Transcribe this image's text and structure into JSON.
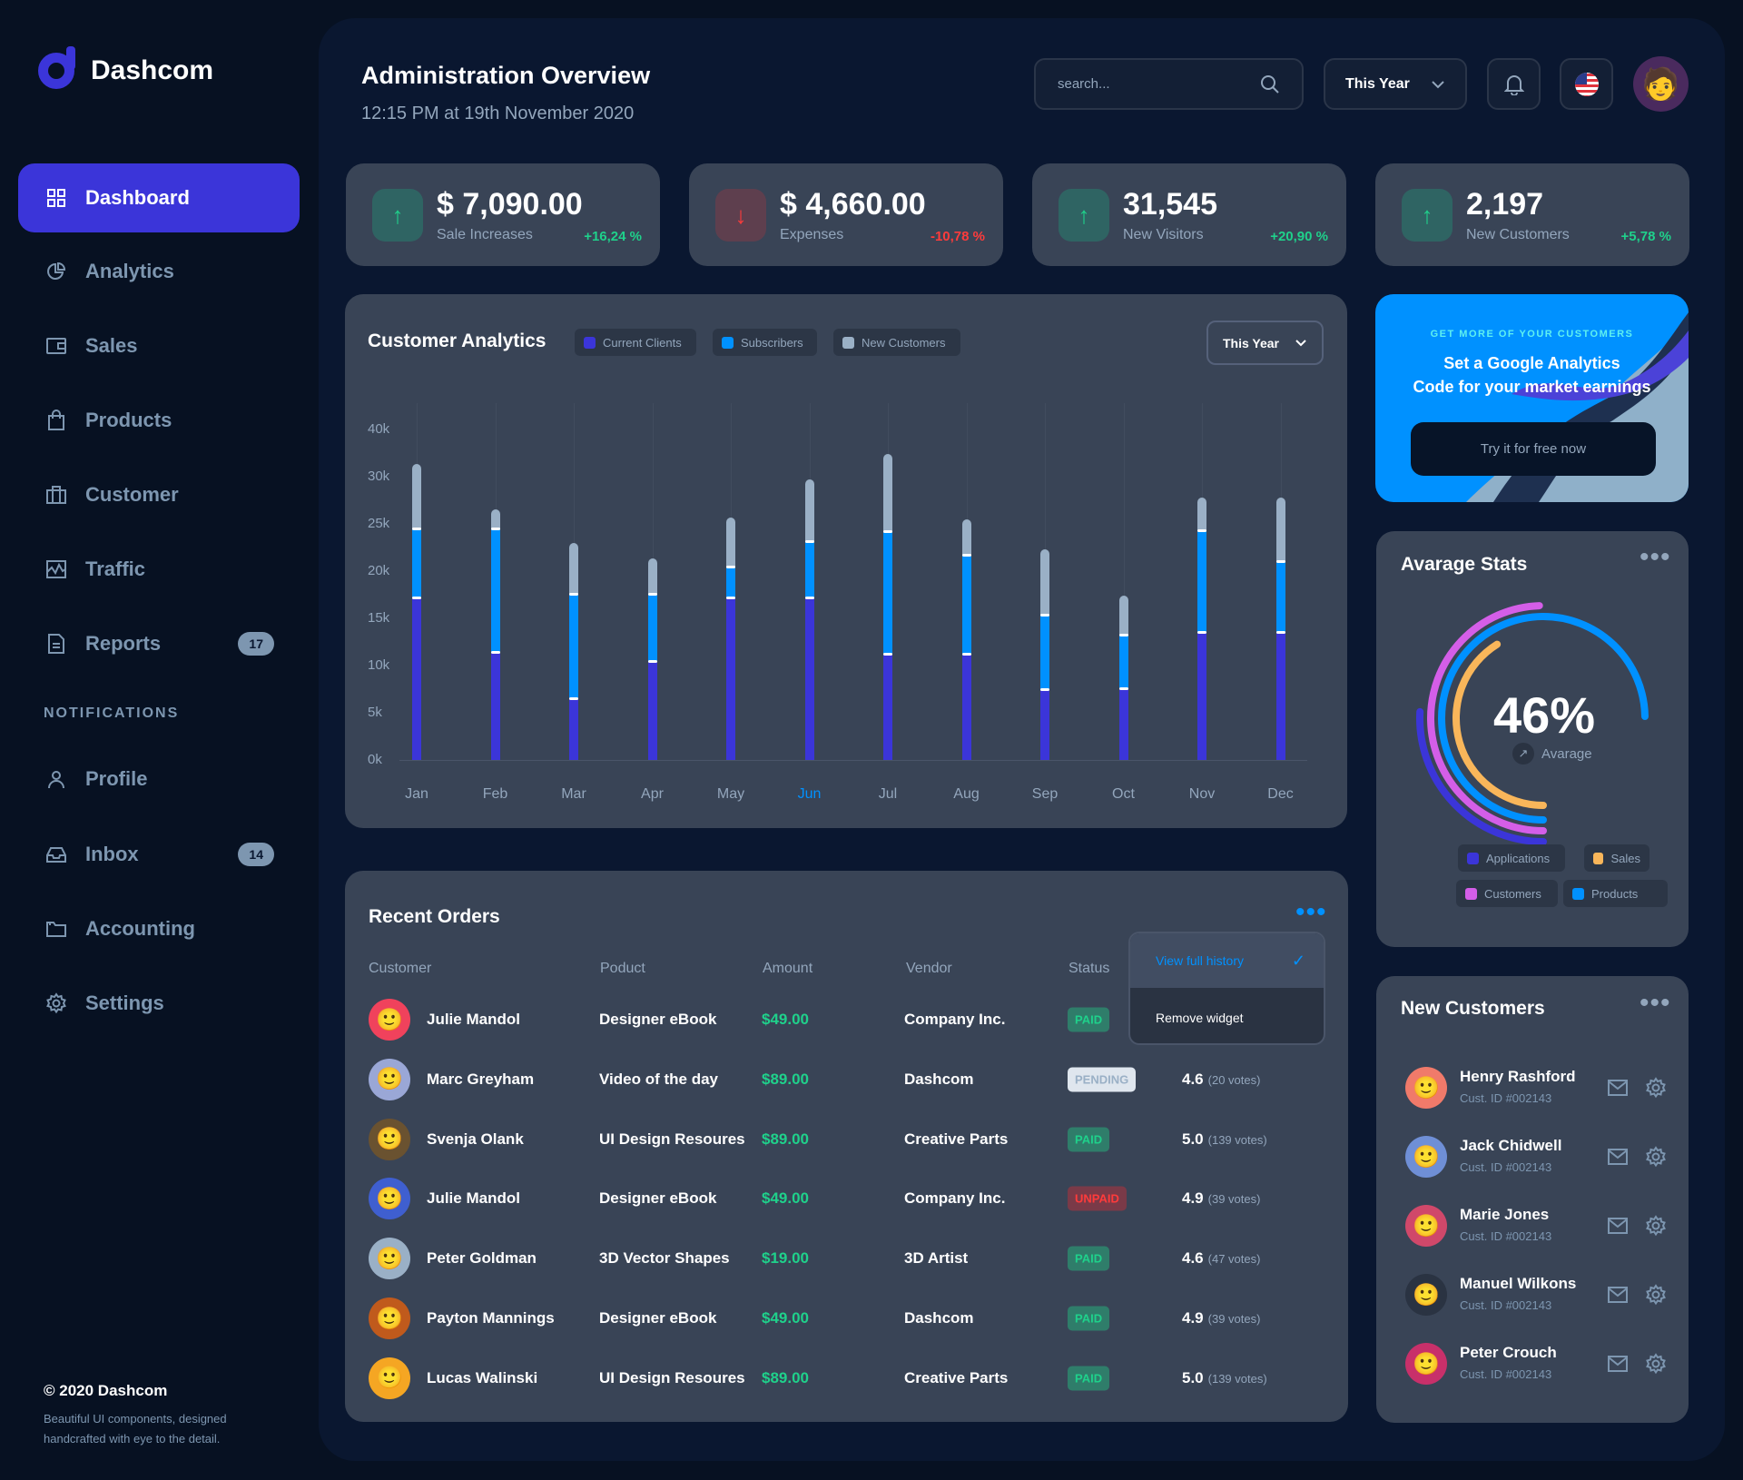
{
  "brand": {
    "name": "Dashcom"
  },
  "sidebar": {
    "items": [
      {
        "label": "Dashboard",
        "icon": "grid-icon",
        "active": true
      },
      {
        "label": "Analytics",
        "icon": "pie-chart-icon"
      },
      {
        "label": "Sales",
        "icon": "wallet-icon"
      },
      {
        "label": "Products",
        "icon": "bag-icon"
      },
      {
        "label": "Customer",
        "icon": "briefcase-icon"
      },
      {
        "label": "Traffic",
        "icon": "activity-icon"
      },
      {
        "label": "Reports",
        "icon": "document-icon",
        "badge": "17"
      }
    ],
    "section_label": "NOTIFICATIONS",
    "notification_items": [
      {
        "label": "Profile",
        "icon": "user-icon"
      },
      {
        "label": "Inbox",
        "icon": "inbox-icon",
        "badge": "14"
      },
      {
        "label": "Accounting",
        "icon": "folder-icon"
      },
      {
        "label": "Settings",
        "icon": "gear-icon"
      }
    ],
    "footer_title": "© 2020 Dashcom",
    "footer_text": "Beautiful UI components, designed handcrafted with eye to the detail."
  },
  "header": {
    "title": "Administration Overview",
    "subtitle": "12:15 PM at 19th November 2020",
    "search_placeholder": "search...",
    "period": "This Year"
  },
  "stats": [
    {
      "value": "$ 7,090.00",
      "label": "Sale Increases",
      "change": "+16,24 %",
      "direction": "up"
    },
    {
      "value": "$ 4,660.00",
      "label": "Expenses",
      "change": "-10,78 %",
      "direction": "down"
    },
    {
      "value": "31,545",
      "label": "New Visitors",
      "change": "+20,90 %",
      "direction": "up"
    },
    {
      "value": "2,197",
      "label": "New Customers",
      "change": "+5,78 %",
      "direction": "up"
    }
  ],
  "colors": {
    "accent": "#3b35d9",
    "blue": "#0091ff",
    "gray": "#9ab0c6",
    "green": "#1fd18b",
    "red": "#ff3b3b",
    "orange": "#f9b65a",
    "pink": "#d45ee8"
  },
  "chart_data": {
    "type": "bar",
    "stacked": true,
    "title": "Customer Analytics",
    "period": "This Year",
    "categories": [
      "Jan",
      "Feb",
      "Mar",
      "Apr",
      "May",
      "Jun",
      "Jul",
      "Aug",
      "Sep",
      "Oct",
      "Nov",
      "Dec"
    ],
    "highlighted_category": "Jun",
    "series": [
      {
        "name": "Current Clients",
        "color": "#3b35d9",
        "values": [
          17100,
          11300,
          6400,
          10400,
          17100,
          17100,
          11200,
          11200,
          7400,
          7500,
          13500,
          13500
        ]
      },
      {
        "name": "Subscribers",
        "color": "#0091ff",
        "values": [
          7300,
          13100,
          11100,
          7100,
          3300,
          6000,
          12900,
          10400,
          7900,
          5700,
          10700,
          7500
        ]
      },
      {
        "name": "New Customers",
        "color": "#9ab0c6",
        "values": [
          6900,
          2100,
          5500,
          3800,
          5300,
          6600,
          8300,
          3900,
          7000,
          4200,
          3600,
          6800
        ]
      }
    ],
    "y_tick_labels": [
      "0k",
      "5k",
      "10k",
      "15k",
      "20k",
      "25k",
      "30k",
      "40k"
    ],
    "legend": "top",
    "grid": "vertical"
  },
  "promo": {
    "eyebrow": "GET MORE OF YOUR CUSTOMERS",
    "headline_1": "Set a Google Analytics",
    "headline_2": "Code for your market earnings",
    "cta": "Try it for free now"
  },
  "avg_stats": {
    "title": "Avarage Stats",
    "value": "46%",
    "label": "Avarage",
    "legend": [
      {
        "name": "Applications",
        "color": "#3b35d9"
      },
      {
        "name": "Sales",
        "color": "#f9b65a"
      },
      {
        "name": "Customers",
        "color": "#d45ee8"
      },
      {
        "name": "Products",
        "color": "#0091ff"
      }
    ]
  },
  "orders": {
    "title": "Recent Orders",
    "columns": [
      "Customer",
      "Poduct",
      "Amount",
      "Vendor",
      "Status"
    ],
    "menu": {
      "view": "View full history",
      "remove": "Remove widget"
    },
    "rows": [
      {
        "customer": "Julie Mandol",
        "product": "Designer eBook",
        "amount": "$49.00",
        "vendor": "Company Inc.",
        "status": "PAID",
        "rating": "",
        "votes": ""
      },
      {
        "customer": "Marc Greyham",
        "product": "Video of the day",
        "amount": "$89.00",
        "vendor": "Dashcom",
        "status": "PENDING",
        "rating": "4.6",
        "votes": "(20 votes)"
      },
      {
        "customer": "Svenja Olank",
        "product": "UI Design Resoures",
        "amount": "$89.00",
        "vendor": "Creative Parts",
        "status": "PAID",
        "rating": "5.0",
        "votes": "(139 votes)"
      },
      {
        "customer": "Julie Mandol",
        "product": "Designer eBook",
        "amount": "$49.00",
        "vendor": "Company Inc.",
        "status": "UNPAID",
        "rating": "4.9",
        "votes": "(39 votes)"
      },
      {
        "customer": "Peter Goldman",
        "product": "3D Vector Shapes",
        "amount": "$19.00",
        "vendor": "3D Artist",
        "status": "PAID",
        "rating": "4.6",
        "votes": "(47 votes)"
      },
      {
        "customer": "Payton Mannings",
        "product": "Designer eBook",
        "amount": "$49.00",
        "vendor": "Dashcom",
        "status": "PAID",
        "rating": "4.9",
        "votes": "(39 votes)"
      },
      {
        "customer": "Lucas Walinski",
        "product": "UI Design Resoures",
        "amount": "$89.00",
        "vendor": "Creative Parts",
        "status": "PAID",
        "rating": "5.0",
        "votes": "(139 votes)"
      }
    ]
  },
  "new_customers": {
    "title": "New Customers",
    "items": [
      {
        "name": "Henry Rashford",
        "id": "Cust. ID #002143"
      },
      {
        "name": "Jack Chidwell",
        "id": "Cust. ID #002143"
      },
      {
        "name": "Marie Jones",
        "id": "Cust. ID #002143"
      },
      {
        "name": "Manuel Wilkons",
        "id": "Cust. ID #002143"
      },
      {
        "name": "Peter Crouch",
        "id": "Cust. ID #002143"
      }
    ]
  }
}
